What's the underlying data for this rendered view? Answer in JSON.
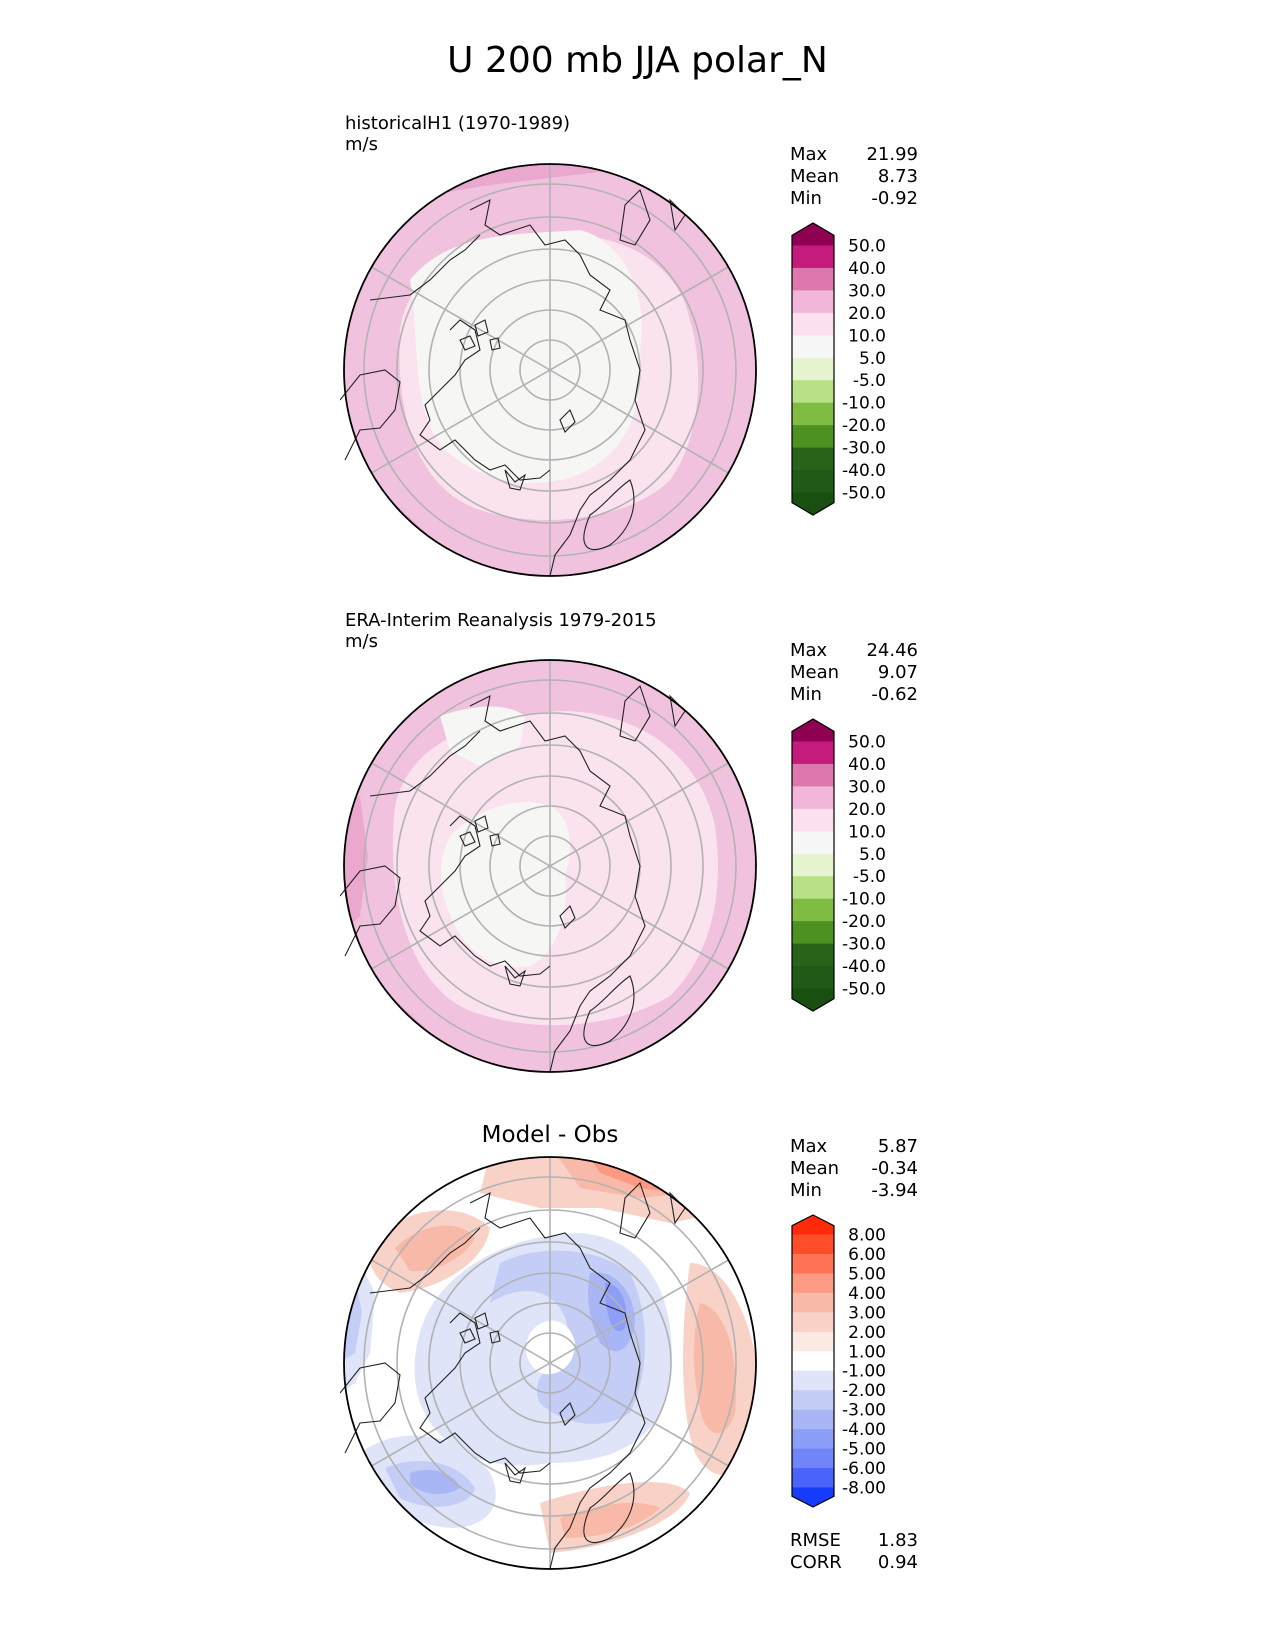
{
  "figure": {
    "title": "U 200 mb JJA polar_N"
  },
  "panels": [
    {
      "title": "historicalH1 (1970-1989)",
      "units": "m/s",
      "stats": [
        {
          "label": "Max",
          "value": "21.99"
        },
        {
          "label": "Mean",
          "value": "8.73"
        },
        {
          "label": "Min",
          "value": "-0.92"
        }
      ]
    },
    {
      "title": "ERA-Interim Reanalysis 1979-2015",
      "units": "m/s",
      "stats": [
        {
          "label": "Max",
          "value": "24.46"
        },
        {
          "label": "Mean",
          "value": "9.07"
        },
        {
          "label": "Min",
          "value": "-0.62"
        }
      ]
    },
    {
      "title": "Model - Obs",
      "stats": [
        {
          "label": "Max",
          "value": "5.87"
        },
        {
          "label": "Mean",
          "value": "-0.34"
        },
        {
          "label": "Min",
          "value": "-3.94"
        }
      ],
      "metrics": [
        {
          "label": "RMSE",
          "value": "1.83"
        },
        {
          "label": "CORR",
          "value": "0.94"
        }
      ]
    }
  ],
  "chart_data": [
    {
      "type": "heatmap",
      "projection": "north polar stereographic",
      "title": "historicalH1 (1970-1989)",
      "units": "m/s",
      "colorbar": {
        "levels": [
          "50.0",
          "40.0",
          "30.0",
          "20.0",
          "10.0",
          "5.0",
          "-5.0",
          "-10.0",
          "-20.0",
          "-30.0",
          "-40.0",
          "-50.0"
        ],
        "colors": [
          "#8e0152",
          "#c51b7d",
          "#de77ae",
          "#f1b6da",
          "#fde0ef",
          "#f7f7f7",
          "#e6f5d0",
          "#b8e186",
          "#7fbc41",
          "#4d9221",
          "#276419",
          "#1f5a16",
          "#1a4f12"
        ]
      },
      "stats": {
        "max": 21.99,
        "mean": 8.73,
        "min": -0.92
      }
    },
    {
      "type": "heatmap",
      "projection": "north polar stereographic",
      "title": "ERA-Interim Reanalysis 1979-2015",
      "units": "m/s",
      "colorbar": {
        "levels": [
          "50.0",
          "40.0",
          "30.0",
          "20.0",
          "10.0",
          "5.0",
          "-5.0",
          "-10.0",
          "-20.0",
          "-30.0",
          "-40.0",
          "-50.0"
        ],
        "colors": [
          "#8e0152",
          "#c51b7d",
          "#de77ae",
          "#f1b6da",
          "#fde0ef",
          "#f7f7f7",
          "#e6f5d0",
          "#b8e186",
          "#7fbc41",
          "#4d9221",
          "#276419",
          "#1f5a16",
          "#1a4f12"
        ]
      },
      "stats": {
        "max": 24.46,
        "mean": 9.07,
        "min": -0.62
      }
    },
    {
      "type": "heatmap",
      "projection": "north polar stereographic",
      "title": "Model - Obs",
      "colorbar": {
        "levels": [
          "8.00",
          "6.00",
          "5.00",
          "4.00",
          "3.00",
          "2.00",
          "1.00",
          "-1.00",
          "-2.00",
          "-3.00",
          "-4.00",
          "-5.00",
          "-6.00",
          "-8.00"
        ],
        "colors": [
          "#ff2a0a",
          "#ff4d2a",
          "#ff7255",
          "#fe9a84",
          "#f8b9a8",
          "#f9d2c7",
          "#fbe9e4",
          "#ffffff",
          "#dfe4f8",
          "#c3cdf6",
          "#a8b6f6",
          "#8d9ef7",
          "#6f85f8",
          "#4a63fa",
          "#173bfb"
        ]
      },
      "stats": {
        "max": 5.87,
        "mean": -0.34,
        "min": -3.94
      },
      "rmse": 1.83,
      "corr": 0.94
    }
  ]
}
